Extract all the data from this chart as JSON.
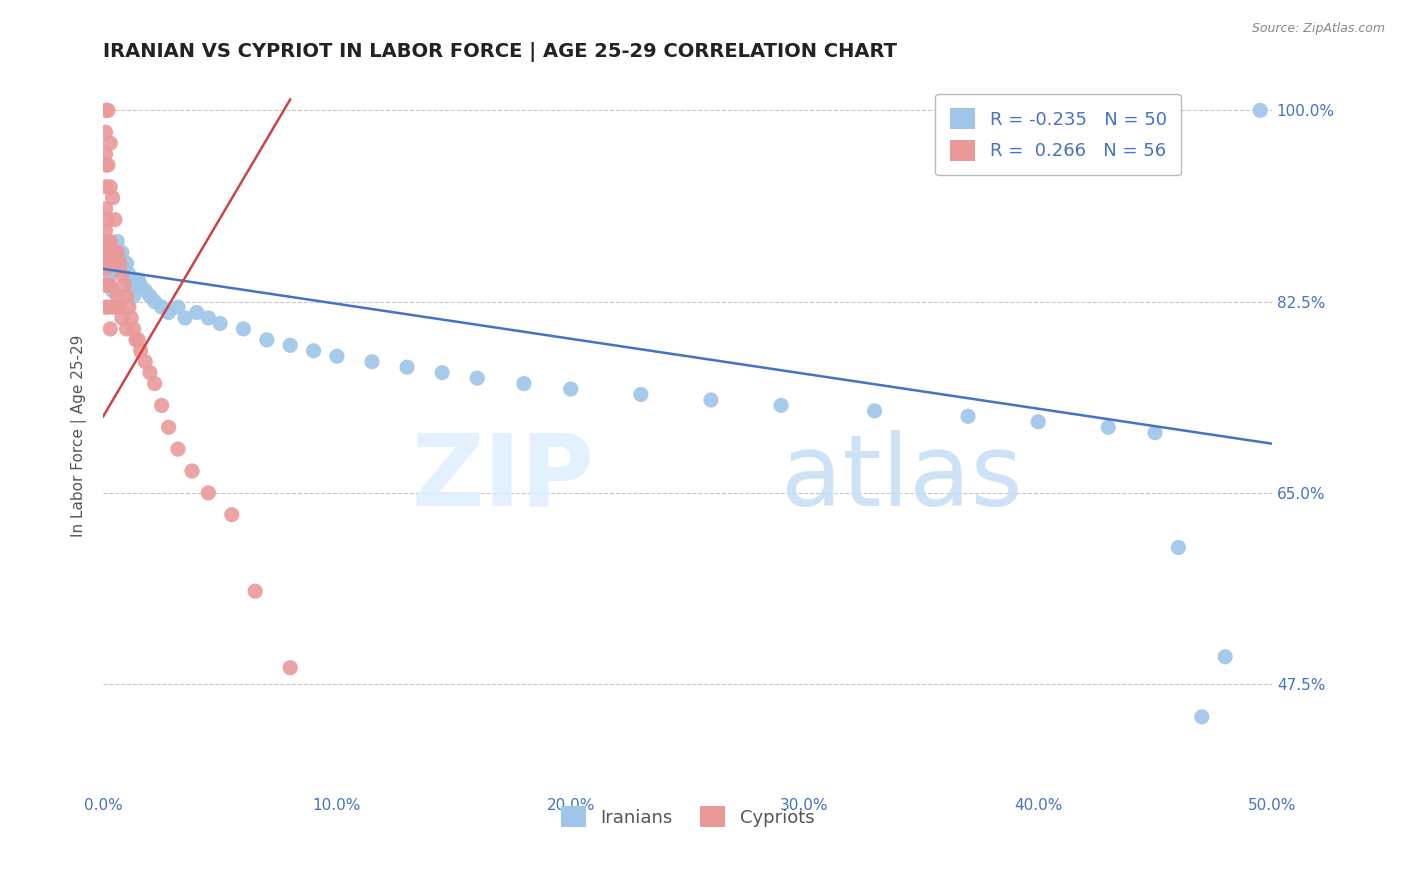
{
  "title": "IRANIAN VS CYPRIOT IN LABOR FORCE | AGE 25-29 CORRELATION CHART",
  "source_text": "Source: ZipAtlas.com",
  "ylabel": "In Labor Force | Age 25-29",
  "xlim": [
    0.0,
    0.5
  ],
  "ylim": [
    0.375,
    1.03
  ],
  "xticks": [
    0.0,
    0.1,
    0.2,
    0.3,
    0.4,
    0.5
  ],
  "xtick_labels": [
    "0.0%",
    "10.0%",
    "20.0%",
    "30.0%",
    "40.0%",
    "50.0%"
  ],
  "yticks": [
    0.475,
    0.65,
    0.825,
    1.0
  ],
  "ytick_labels": [
    "47.5%",
    "65.0%",
    "82.5%",
    "100.0%"
  ],
  "grid_color": "#c8c8c8",
  "background_color": "#ffffff",
  "legend_R1": "-0.235",
  "legend_N1": "50",
  "legend_R2": "0.266",
  "legend_N2": "56",
  "iranian_color": "#9fc5e8",
  "cypriot_color": "#ea9999",
  "trendline_iranian_color": "#4472c4",
  "trendline_cypriot_color": "#cc4444",
  "title_fontsize": 14,
  "axis_label_fontsize": 11,
  "tick_fontsize": 11,
  "legend_fontsize": 13,
  "iranians_x": [
    0.001,
    0.001,
    0.002,
    0.003,
    0.003,
    0.004,
    0.005,
    0.006,
    0.007,
    0.008,
    0.009,
    0.01,
    0.011,
    0.012,
    0.013,
    0.015,
    0.016,
    0.018,
    0.02,
    0.022,
    0.025,
    0.028,
    0.032,
    0.035,
    0.04,
    0.045,
    0.05,
    0.06,
    0.07,
    0.08,
    0.09,
    0.1,
    0.115,
    0.13,
    0.145,
    0.16,
    0.18,
    0.2,
    0.23,
    0.26,
    0.29,
    0.33,
    0.37,
    0.4,
    0.43,
    0.45,
    0.46,
    0.47,
    0.48,
    0.495
  ],
  "iranians_y": [
    0.88,
    0.84,
    0.87,
    0.86,
    0.85,
    0.835,
    0.855,
    0.88,
    0.865,
    0.87,
    0.855,
    0.86,
    0.85,
    0.84,
    0.83,
    0.845,
    0.84,
    0.835,
    0.83,
    0.825,
    0.82,
    0.815,
    0.82,
    0.81,
    0.815,
    0.81,
    0.805,
    0.8,
    0.79,
    0.785,
    0.78,
    0.775,
    0.77,
    0.765,
    0.76,
    0.755,
    0.75,
    0.745,
    0.74,
    0.735,
    0.73,
    0.725,
    0.72,
    0.715,
    0.71,
    0.705,
    0.6,
    0.445,
    0.5,
    1.0
  ],
  "cypriots_x": [
    0.001,
    0.001,
    0.001,
    0.001,
    0.001,
    0.001,
    0.001,
    0.001,
    0.001,
    0.001,
    0.001,
    0.001,
    0.002,
    0.002,
    0.002,
    0.002,
    0.002,
    0.002,
    0.002,
    0.003,
    0.003,
    0.003,
    0.003,
    0.003,
    0.004,
    0.004,
    0.004,
    0.005,
    0.005,
    0.005,
    0.006,
    0.006,
    0.007,
    0.007,
    0.008,
    0.008,
    0.009,
    0.01,
    0.01,
    0.011,
    0.012,
    0.013,
    0.014,
    0.015,
    0.016,
    0.018,
    0.02,
    0.022,
    0.025,
    0.028,
    0.032,
    0.038,
    0.045,
    0.055,
    0.065,
    0.08
  ],
  "cypriots_y": [
    1.0,
    0.98,
    0.96,
    0.95,
    0.93,
    0.91,
    0.89,
    0.87,
    0.86,
    0.855,
    0.84,
    0.82,
    1.0,
    0.95,
    0.9,
    0.88,
    0.86,
    0.84,
    0.82,
    0.97,
    0.93,
    0.88,
    0.84,
    0.8,
    0.92,
    0.87,
    0.82,
    0.9,
    0.86,
    0.82,
    0.87,
    0.83,
    0.86,
    0.82,
    0.85,
    0.81,
    0.84,
    0.83,
    0.8,
    0.82,
    0.81,
    0.8,
    0.79,
    0.79,
    0.78,
    0.77,
    0.76,
    0.75,
    0.73,
    0.71,
    0.69,
    0.67,
    0.65,
    0.63,
    0.56,
    0.49
  ],
  "trendline_iranian_x0": 0.0,
  "trendline_iranian_x1": 0.5,
  "trendline_iranian_y0": 0.855,
  "trendline_iranian_y1": 0.695,
  "trendline_cypriot_x0": 0.0,
  "trendline_cypriot_x1": 0.08,
  "trendline_cypriot_y0": 0.72,
  "trendline_cypriot_y1": 1.01
}
